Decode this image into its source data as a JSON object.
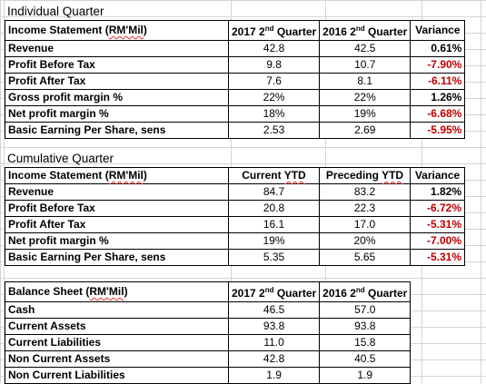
{
  "individual": {
    "title": "Individual Quarter",
    "headers": {
      "label_pre": "Income Statement (",
      "label_unit": "RM'Mil",
      "label_post": ")",
      "col_a": "2017 2nd Quarter",
      "col_b": "2016 2nd Quarter",
      "col_var": "Variance"
    },
    "rows": [
      {
        "label": "Revenue",
        "a": "42.8",
        "b": "42.5",
        "var": "0.61%"
      },
      {
        "label": "Profit Before Tax",
        "a": "9.8",
        "b": "10.7",
        "var": "-7.90%"
      },
      {
        "label": "Profit After Tax",
        "a": "7.6",
        "b": "8.1",
        "var": "-6.11%"
      },
      {
        "label": "Gross profit margin %",
        "a": "22%",
        "b": "22%",
        "var": "1.26%"
      },
      {
        "label": "Net profit margin %",
        "a": "18%",
        "b": "19%",
        "var": "-6.68%"
      },
      {
        "label": "Basic Earning Per Share, sens",
        "a": "2.53",
        "b": "2.69",
        "var": "-5.95%"
      }
    ]
  },
  "cumulative": {
    "title": "Cumulative Quarter",
    "headers": {
      "label_pre": "Income Statement (",
      "label_unit": "RM'Mil",
      "label_post": ")",
      "col_a": "Current YTD",
      "col_b": "Preceding YTD",
      "col_var": "Variance"
    },
    "rows": [
      {
        "label": "Revenue",
        "a": "84.7",
        "b": "83.2",
        "var": "1.82%"
      },
      {
        "label": "Profit Before Tax",
        "a": "20.8",
        "b": "22.3",
        "var": "-6.72%"
      },
      {
        "label": "Profit After Tax",
        "a": "16.1",
        "b": "17.0",
        "var": "-5.31%"
      },
      {
        "label": "Net profit margin %",
        "a": "19%",
        "b": "20%",
        "var": "-7.00%"
      },
      {
        "label": "Basic Earning Per Share, sens",
        "a": "5.35",
        "b": "5.65",
        "var": "-5.31%"
      }
    ]
  },
  "balance": {
    "headers": {
      "label_pre": "Balance Sheet (",
      "label_unit": "RM'Mil",
      "label_post": ")",
      "col_a": "2017 2nd Quarter",
      "col_b": "2016 2nd Quarter"
    },
    "rows": [
      {
        "label": "Cash",
        "a": "46.5",
        "b": "57.0"
      },
      {
        "label": "Current Assets",
        "a": "93.8",
        "b": "93.8"
      },
      {
        "label": "Current Liabilities",
        "a": "11.0",
        "b": "15.8"
      },
      {
        "label": "Non Current Assets",
        "a": "42.8",
        "b": "40.5"
      },
      {
        "label": "Non Current Liabilities",
        "a": "1.9",
        "b": "1.9"
      }
    ]
  },
  "colors": {
    "negative": "#c00000",
    "gridline": "#d4d4d4",
    "spellcheck": "#e03030"
  }
}
